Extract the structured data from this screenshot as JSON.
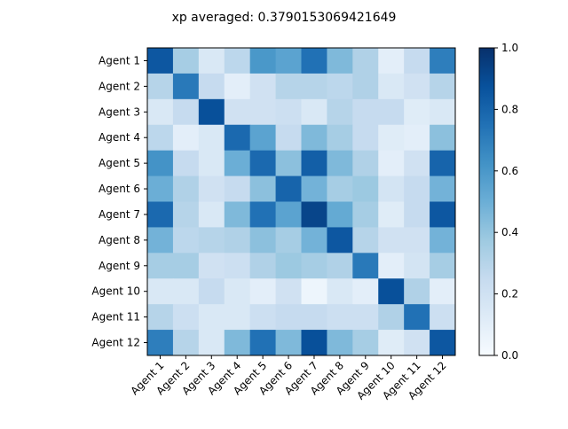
{
  "chart_data": {
    "type": "heatmap",
    "title": "xp averaged: 0.3790153069421649",
    "xlabel": "",
    "ylabel": "",
    "row_labels": [
      "Agent 1",
      "Agent 2",
      "Agent 3",
      "Agent 4",
      "Agent 5",
      "Agent 6",
      "Agent 7",
      "Agent 8",
      "Agent 9",
      "Agent 10",
      "Agent 11",
      "Agent 12"
    ],
    "col_labels": [
      "Agent 1",
      "Agent 2",
      "Agent 3",
      "Agent 4",
      "Agent 5",
      "Agent 6",
      "Agent 7",
      "Agent 8",
      "Agent 9",
      "Agent 10",
      "Agent 11",
      "Agent 12"
    ],
    "values": [
      [
        0.85,
        0.35,
        0.15,
        0.28,
        0.6,
        0.55,
        0.75,
        0.45,
        0.32,
        0.1,
        0.25,
        0.7
      ],
      [
        0.3,
        0.72,
        0.25,
        0.1,
        0.2,
        0.3,
        0.3,
        0.28,
        0.32,
        0.15,
        0.2,
        0.3
      ],
      [
        0.15,
        0.25,
        0.88,
        0.2,
        0.2,
        0.22,
        0.15,
        0.3,
        0.25,
        0.25,
        0.12,
        0.15
      ],
      [
        0.28,
        0.1,
        0.15,
        0.78,
        0.55,
        0.25,
        0.45,
        0.35,
        0.25,
        0.12,
        0.1,
        0.42
      ],
      [
        0.62,
        0.25,
        0.15,
        0.5,
        0.78,
        0.42,
        0.82,
        0.45,
        0.32,
        0.1,
        0.2,
        0.8
      ],
      [
        0.5,
        0.32,
        0.2,
        0.25,
        0.42,
        0.8,
        0.48,
        0.35,
        0.38,
        0.18,
        0.25,
        0.48
      ],
      [
        0.78,
        0.3,
        0.15,
        0.45,
        0.75,
        0.55,
        0.92,
        0.52,
        0.35,
        0.12,
        0.25,
        0.85
      ],
      [
        0.48,
        0.28,
        0.3,
        0.32,
        0.42,
        0.35,
        0.48,
        0.85,
        0.3,
        0.2,
        0.2,
        0.48
      ],
      [
        0.35,
        0.35,
        0.2,
        0.22,
        0.32,
        0.38,
        0.35,
        0.32,
        0.72,
        0.1,
        0.18,
        0.35
      ],
      [
        0.15,
        0.15,
        0.25,
        0.15,
        0.1,
        0.2,
        0.05,
        0.15,
        0.1,
        0.88,
        0.32,
        0.1
      ],
      [
        0.3,
        0.22,
        0.15,
        0.15,
        0.22,
        0.25,
        0.25,
        0.22,
        0.22,
        0.32,
        0.75,
        0.22
      ],
      [
        0.7,
        0.3,
        0.15,
        0.45,
        0.75,
        0.45,
        0.88,
        0.45,
        0.35,
        0.12,
        0.2,
        0.85
      ]
    ],
    "vmin": 0.0,
    "vmax": 1.0,
    "colormap": "Blues",
    "colorbar_ticks": [
      "0.0",
      "0.2",
      "0.4",
      "0.6",
      "0.8",
      "1.0"
    ],
    "grid": false,
    "legend": "colorbar-right"
  }
}
